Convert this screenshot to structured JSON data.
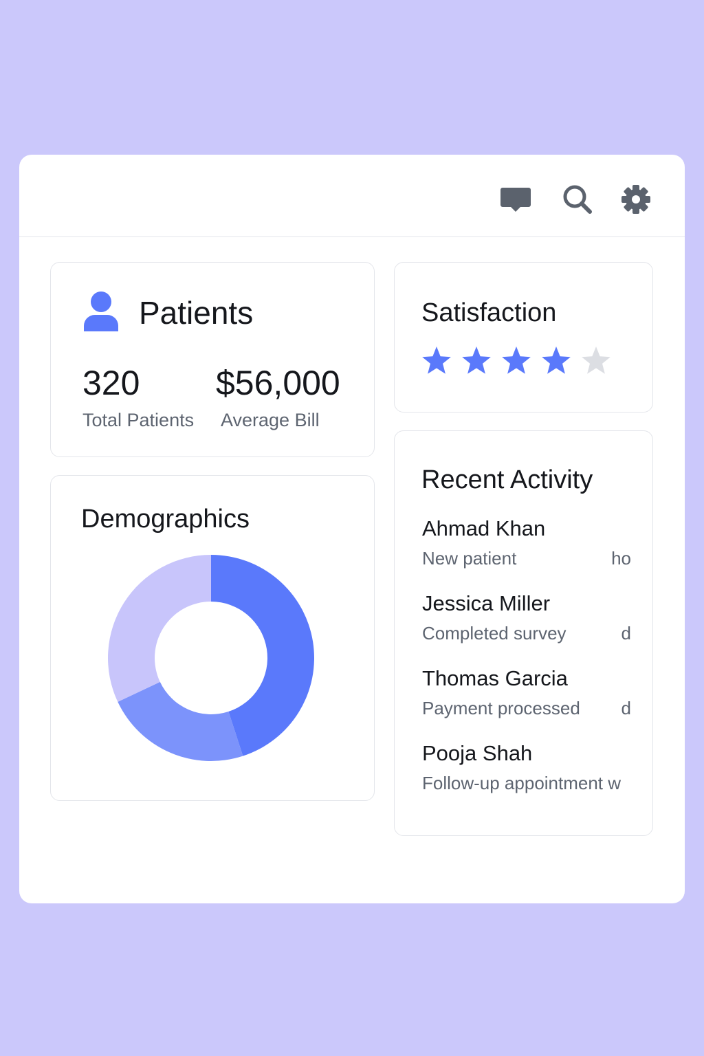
{
  "colors": {
    "background": "#cbc8fb",
    "accent": "#5a79fb",
    "accent_mid": "#7c93fb",
    "accent_light": "#c8c5fb",
    "star_empty": "#dcdee3",
    "icon": "#5b626d"
  },
  "topbar": {
    "icons": [
      "chat-icon",
      "search-icon",
      "gear-icon"
    ]
  },
  "patients": {
    "title": "Patients",
    "icon": "user-icon",
    "total_value": "320",
    "total_label": "Total Patients",
    "bill_value": "$56,000",
    "bill_label": "Average Bill"
  },
  "satisfaction": {
    "title": "Satisfaction",
    "rating": 4,
    "max": 5
  },
  "demographics": {
    "title": "Demographics"
  },
  "chart_data": {
    "type": "pie",
    "title": "Demographics",
    "donut": true,
    "segments": [
      {
        "value": 45,
        "color": "#5a79fb"
      },
      {
        "value": 23,
        "color": "#7c93fb"
      },
      {
        "value": 32,
        "color": "#c8c5fb"
      }
    ]
  },
  "recent_activity": {
    "title": "Recent Activity",
    "items": [
      {
        "name": "Ahmad Khan",
        "desc": "New patient",
        "time": "ho"
      },
      {
        "name": "Jessica Miller",
        "desc": "Completed survey",
        "time": "d"
      },
      {
        "name": "Thomas Garcia",
        "desc": "Payment processed",
        "time": "d"
      },
      {
        "name": "Pooja Shah",
        "desc": "Follow-up appointment w",
        "time": ""
      }
    ]
  }
}
